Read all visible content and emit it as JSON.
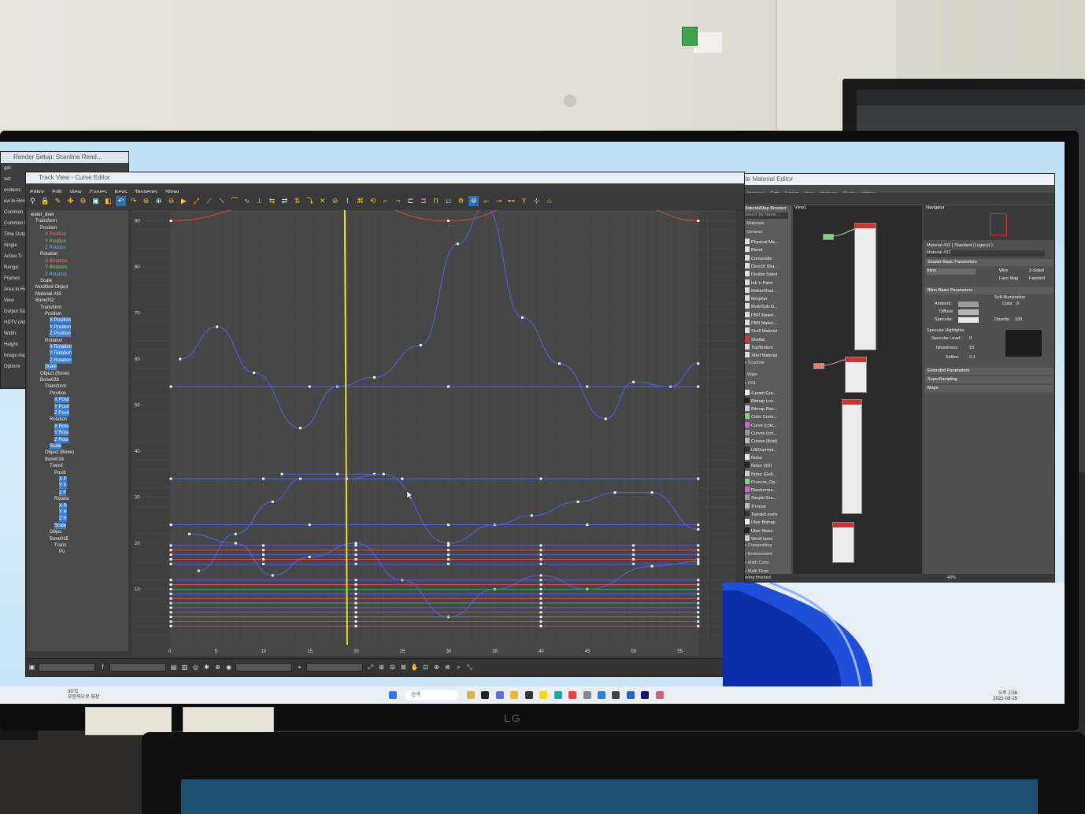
{
  "render_setup": {
    "title": "Render Setup: Scanline Rend...",
    "labels": [
      "get:",
      "set:",
      "enderer:",
      "ew to Render",
      "Common",
      "Common P",
      "Time Output",
      "Single",
      "Active Ti",
      "Range:",
      "Frames",
      "Area to Rend",
      "View",
      "Output Size",
      "HDTV (vide",
      "Width:",
      "Height:",
      "Image Aspect",
      "Options"
    ]
  },
  "track_view": {
    "title": "Track View - Curve Editor",
    "menu": [
      "Editor",
      "Edit",
      "View",
      "Curves",
      "Keys",
      "Tangents",
      "Show"
    ],
    "tree": [
      {
        "label": "water_deer",
        "depth": 0,
        "style": ""
      },
      {
        "label": "Transform",
        "depth": 1,
        "style": ""
      },
      {
        "label": "Position",
        "depth": 2,
        "style": ""
      },
      {
        "label": "X Position",
        "depth": 3,
        "style": "xcol"
      },
      {
        "label": "Y Position",
        "depth": 3,
        "style": "ycol"
      },
      {
        "label": "Z Position",
        "depth": 3,
        "style": "zcol"
      },
      {
        "label": "Rotation",
        "depth": 2,
        "style": ""
      },
      {
        "label": "X Rotation",
        "depth": 3,
        "style": "xcol"
      },
      {
        "label": "Y Rotation",
        "depth": 3,
        "style": "ycol"
      },
      {
        "label": "Z Rotation",
        "depth": 3,
        "style": "zcol"
      },
      {
        "label": "Scale",
        "depth": 2,
        "style": ""
      },
      {
        "label": "Modified Object",
        "depth": 1,
        "style": ""
      },
      {
        "label": "Material #32",
        "depth": 1,
        "style": ""
      },
      {
        "label": "Bone032",
        "depth": 1,
        "style": ""
      },
      {
        "label": "Transform",
        "depth": 2,
        "style": ""
      },
      {
        "label": "Position",
        "depth": 3,
        "style": ""
      },
      {
        "label": "X Position",
        "depth": 4,
        "style": "sel"
      },
      {
        "label": "Y Position",
        "depth": 4,
        "style": "sel"
      },
      {
        "label": "Z Position",
        "depth": 4,
        "style": "sel"
      },
      {
        "label": "Rotation",
        "depth": 3,
        "style": ""
      },
      {
        "label": "X Rotation",
        "depth": 4,
        "style": "sel"
      },
      {
        "label": "Y Rotation",
        "depth": 4,
        "style": "sel"
      },
      {
        "label": "Z Rotation",
        "depth": 4,
        "style": "sel"
      },
      {
        "label": "Scale",
        "depth": 3,
        "style": "sel"
      },
      {
        "label": "Object (Bone)",
        "depth": 2,
        "style": ""
      },
      {
        "label": "Bone033",
        "depth": 2,
        "style": ""
      },
      {
        "label": "Transform",
        "depth": 3,
        "style": ""
      },
      {
        "label": "Position",
        "depth": 4,
        "style": ""
      },
      {
        "label": "X Posit",
        "depth": 5,
        "style": "sel"
      },
      {
        "label": "Y Posit",
        "depth": 5,
        "style": "sel"
      },
      {
        "label": "Z Posit",
        "depth": 5,
        "style": "sel"
      },
      {
        "label": "Rotation",
        "depth": 4,
        "style": ""
      },
      {
        "label": "X Rota",
        "depth": 5,
        "style": "sel"
      },
      {
        "label": "Y Rota",
        "depth": 5,
        "style": "sel"
      },
      {
        "label": "Z Rota",
        "depth": 5,
        "style": "sel"
      },
      {
        "label": "Scale",
        "depth": 4,
        "style": "sel"
      },
      {
        "label": "Object (Bone)",
        "depth": 3,
        "style": ""
      },
      {
        "label": "Bone034",
        "depth": 3,
        "style": ""
      },
      {
        "label": "Transf",
        "depth": 4,
        "style": ""
      },
      {
        "label": "Positi",
        "depth": 5,
        "style": ""
      },
      {
        "label": "X P",
        "depth": 6,
        "style": "sel"
      },
      {
        "label": "Y P",
        "depth": 6,
        "style": "sel"
      },
      {
        "label": "Z P",
        "depth": 6,
        "style": "sel"
      },
      {
        "label": "Rotatio",
        "depth": 5,
        "style": ""
      },
      {
        "label": "X R",
        "depth": 6,
        "style": "sel"
      },
      {
        "label": "Y R",
        "depth": 6,
        "style": "sel"
      },
      {
        "label": "Z R",
        "depth": 6,
        "style": "sel"
      },
      {
        "label": "Scale",
        "depth": 5,
        "style": "sel"
      },
      {
        "label": "Objec",
        "depth": 4,
        "style": ""
      },
      {
        "label": "Bone035",
        "depth": 4,
        "style": ""
      },
      {
        "label": "Trans",
        "depth": 5,
        "style": ""
      },
      {
        "label": "Po",
        "depth": 6,
        "style": ""
      }
    ],
    "frame_ticks": [
      "0",
      "5",
      "10",
      "15",
      "20",
      "25",
      "30",
      "35",
      "40",
      "45",
      "50",
      "55"
    ],
    "value_ticks": [
      "90",
      "80",
      "70",
      "60",
      "50",
      "40",
      "30",
      "20",
      "10"
    ],
    "current_frame": 18.8,
    "colors": {
      "curve_blue": "#5560e6",
      "curve_red": "#d24a4a",
      "curve_green": "#3aa06a",
      "time_slider": "#e7e02a",
      "selection_blue": "#2a6fb4"
    }
  },
  "slate_material_editor": {
    "title": "Slate Material Editor",
    "menu": [
      "Modes",
      "Material",
      "Edit",
      "Select",
      "View",
      "Options",
      "Tools",
      "Utilities"
    ],
    "browser_title": "Material/Map Browser",
    "search_placeholder": "Search by Name ...",
    "view_tab": "View1",
    "navigator_label": "Navigator",
    "sections": {
      "materials": "- Materials",
      "general": "- General",
      "scanline": "+ Scanline",
      "maps": "- Maps",
      "osl": "+ OSL",
      "general_maps": "- General"
    },
    "materials": [
      "Physical Ma...",
      "Blend",
      "Composite",
      "DirectX Sha...",
      "Double Sided",
      "Ink 'n Paint",
      "Matte/Shad...",
      "Morpher",
      "Multi/Sub-O...",
      "PBR Materi...",
      "PBR Materi...",
      "Shell Material",
      "Shellac",
      "Top/Bottom",
      "XRef Material"
    ],
    "maps": [
      "4-point Gra...",
      "Bitmap Loo...",
      "Bitmap Ran...",
      "Color Corre...",
      "Curve (colo...",
      "Curves (col...",
      "Curves (float)",
      "Lift/Gamma...",
      "Noise",
      "Noise (3D)",
      "Noise (Gab...",
      "Process_Op...",
      "Randomize...",
      "Simple Gra...",
      "Tri-tone",
      "Tweak/Levels",
      "Uber Bitmap",
      "Uber Noise",
      "WireFrame"
    ],
    "collapsed_groups": [
      "+ Compositing",
      "+ Environment",
      "+ Math Color",
      "+ Math Float"
    ],
    "status": "Rendering finished",
    "zoom": "49%",
    "properties": {
      "material_name": "Material #32",
      "material_type": "Material #32  ( Standard (Legacy) )",
      "shader_basic": "Shader Basic Parameters",
      "shader": "Blinn",
      "wire": "Wire",
      "two_sided": "2-Sided",
      "face_map": "Face Map",
      "faceted": "Faceted",
      "blinn_basic": "Blinn Basic Parameters",
      "self_illum": "Self-Illumination",
      "ambient": "Ambient:",
      "diffuse": "Diffuse:",
      "specular": "Specular:",
      "color": "Color",
      "color_value": "0",
      "opacity": "Opacity:",
      "opacity_value": "100",
      "spec_highlights": "Specular Highlights",
      "spec_level": "Specular Level:",
      "spec_level_value": "0",
      "glossiness": "Glossiness:",
      "glossiness_value": "10",
      "soften": "Soften:",
      "soften_value": "0.1",
      "extended": "Extended Parameters",
      "supersampling": "SuperSampling",
      "maps": "Maps"
    }
  },
  "taskbar": {
    "search": "검색",
    "weather_temp": "30°C",
    "weather_desc": "부분적으로 화창",
    "time": "오후 2:59",
    "date": "2023-08-25"
  },
  "monitor_brand": "LG"
}
